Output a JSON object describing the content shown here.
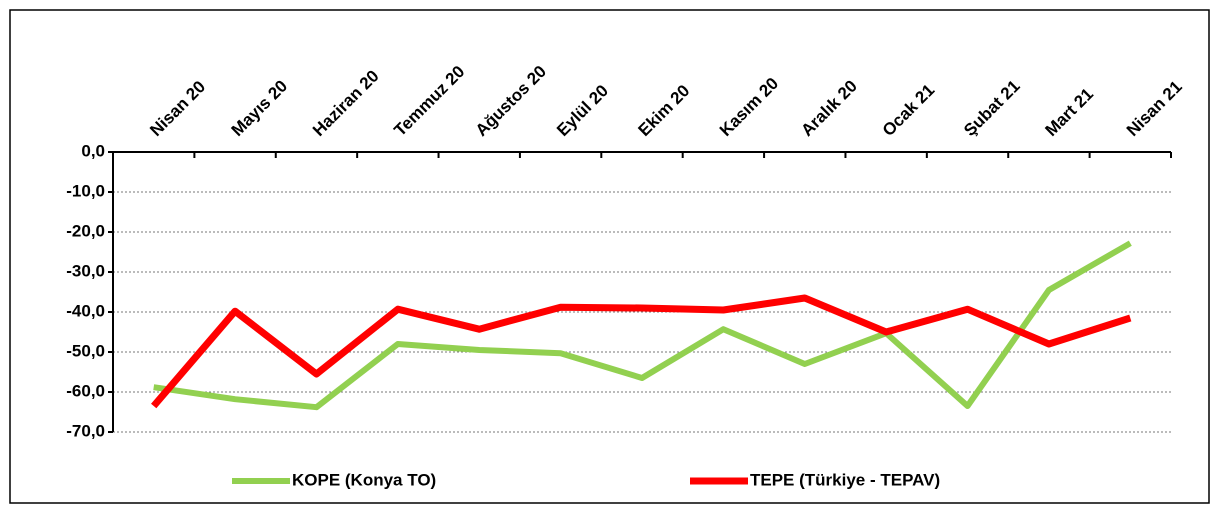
{
  "chart_data": {
    "type": "line",
    "categories": [
      "Nisan 20",
      "Mayıs 20",
      "Haziran 20",
      "Temmuz 20",
      "Ağustos 20",
      "Eylül 20",
      "Ekim 20",
      "Kasım 20",
      "Aralık 20",
      "Ocak 21",
      "Şubat 21",
      "Mart 21",
      "Nisan 21"
    ],
    "series": [
      {
        "name": "KOPE (Konya TO)",
        "color": "#92d050",
        "values": [
          -58.8,
          -61.8,
          -63.8,
          -48,
          -49.5,
          -50.3,
          -56.5,
          -44.3,
          -53,
          -45.3,
          -63.5,
          -34.5,
          -22.8
        ]
      },
      {
        "name": "TEPE (Türkiye - TEPAV)",
        "color": "#ff0000",
        "values": [
          -63.5,
          -39.8,
          -55.5,
          -39.3,
          -44.3,
          -38.8,
          -39,
          -39.5,
          -36.5,
          -45,
          -39.3,
          -48,
          -41.5
        ]
      }
    ],
    "ylim": [
      -70,
      0
    ],
    "yticks": [
      {
        "value": 0,
        "label": "0,0"
      },
      {
        "value": -10,
        "label": "-10,0"
      },
      {
        "value": -20,
        "label": "-20,0"
      },
      {
        "value": -30,
        "label": "-30,0"
      },
      {
        "value": -40,
        "label": "-40,0"
      },
      {
        "value": -50,
        "label": "-50,0"
      },
      {
        "value": -60,
        "label": "-60,0"
      },
      {
        "value": -70,
        "label": "-70,0"
      }
    ],
    "grid": true,
    "legend": "bottom"
  }
}
